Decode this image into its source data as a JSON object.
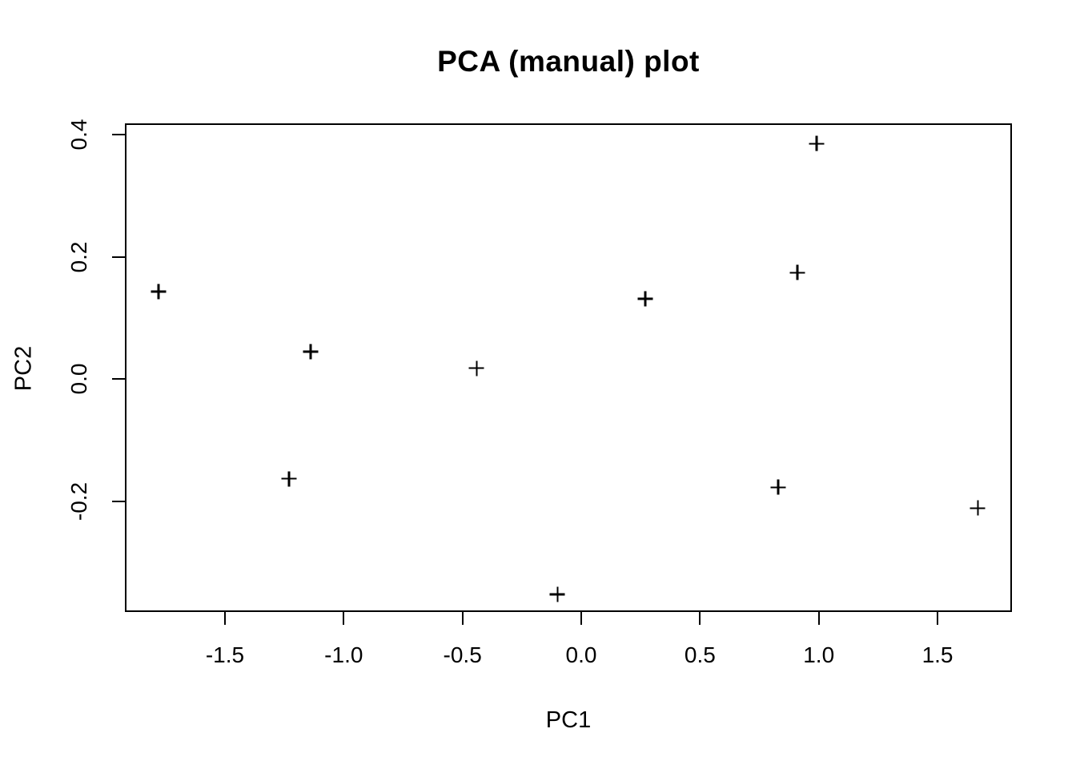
{
  "chart_data": {
    "type": "scatter",
    "title": "PCA (manual) plot",
    "xlabel": "PC1",
    "ylabel": "PC2",
    "marker": "plus",
    "grid": false,
    "legend": "none",
    "xlim": [
      -1.918,
      1.81
    ],
    "ylim": [
      -0.381,
      0.417
    ],
    "x_tick_values": [
      -1.5,
      -1.0,
      -0.5,
      0.0,
      0.5,
      1.0,
      1.5
    ],
    "x_tick_labels": [
      "-1.5",
      "-1.0",
      "-0.5",
      "0.0",
      "0.5",
      "1.0",
      "1.5"
    ],
    "y_tick_values": [
      -0.2,
      0.0,
      0.2,
      0.4
    ],
    "y_tick_labels": [
      "-0.2",
      "0.0",
      "0.2",
      "0.4"
    ],
    "points": [
      {
        "x": -1.78,
        "y": 0.143
      },
      {
        "x": -1.23,
        "y": -0.163
      },
      {
        "x": -1.14,
        "y": 0.045
      },
      {
        "x": -0.44,
        "y": 0.018
      },
      {
        "x": -0.1,
        "y": -0.352
      },
      {
        "x": 0.27,
        "y": 0.131
      },
      {
        "x": 0.83,
        "y": -0.177
      },
      {
        "x": 0.91,
        "y": 0.174
      },
      {
        "x": 0.99,
        "y": 0.385
      },
      {
        "x": 1.67,
        "y": -0.211
      }
    ],
    "colors": {
      "foreground": "#000000",
      "background": "#ffffff"
    }
  }
}
